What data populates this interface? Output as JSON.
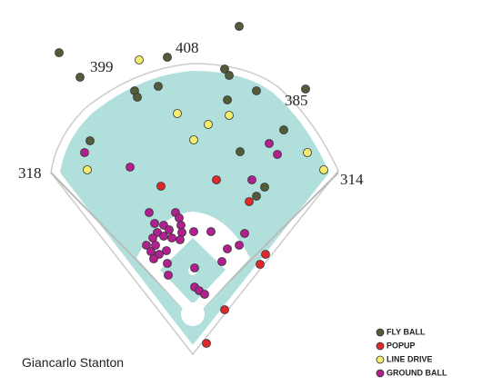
{
  "chart_data": {
    "type": "scatter",
    "title": "Giancarlo Stanton",
    "annotations": [
      "399",
      "408",
      "385",
      "318",
      "314"
    ],
    "xlim": [
      0,
      552
    ],
    "ylim": [
      425,
      0
    ],
    "series": [
      {
        "name": "FLY BALL",
        "color": "#525c3b",
        "x": [
          263,
          65,
          184,
          88,
          247,
          252,
          174,
          148,
          151,
          282,
          250,
          336,
          312,
          99,
          264,
          291,
          282
        ],
        "y": [
          29,
          58,
          63,
          85,
          76,
          83,
          95,
          100,
          107,
          100,
          110,
          98,
          143,
          155,
          167,
          206,
          216
        ]
      },
      {
        "name": "POPUP",
        "color": "#e0282a",
        "x": [
          177,
          238,
          274,
          292,
          286,
          247,
          227
        ],
        "y": [
          205,
          198,
          222,
          280,
          291,
          341,
          378
        ]
      },
      {
        "name": "LINE DRIVE",
        "color": "#f4ec6c",
        "x": [
          153,
          195,
          229,
          252,
          213,
          338,
          356,
          96
        ],
        "y": [
          66,
          125,
          137,
          127,
          154,
          168,
          187,
          187
        ]
      },
      {
        "name": "GROUND BALL",
        "color": "#b0208e",
        "x": [
          93,
          143,
          296,
          305,
          277,
          164,
          193,
          197,
          170,
          180,
          199,
          186,
          173,
          200,
          168,
          180,
          189,
          198,
          213,
          232,
          269,
          171,
          161,
          183,
          166,
          175,
          169,
          184,
          250,
          263,
          244,
          214,
          185,
          214,
          219,
          225
        ],
        "y": [
          168,
          184,
          158,
          170,
          198,
          234,
          234,
          240,
          246,
          248,
          248,
          253,
          256,
          256,
          262,
          260,
          262,
          264,
          255,
          255,
          257,
          270,
          270,
          276,
          277,
          280,
          285,
          290,
          274,
          270,
          288,
          295,
          303,
          316,
          320,
          324
        ]
      }
    ]
  }
}
